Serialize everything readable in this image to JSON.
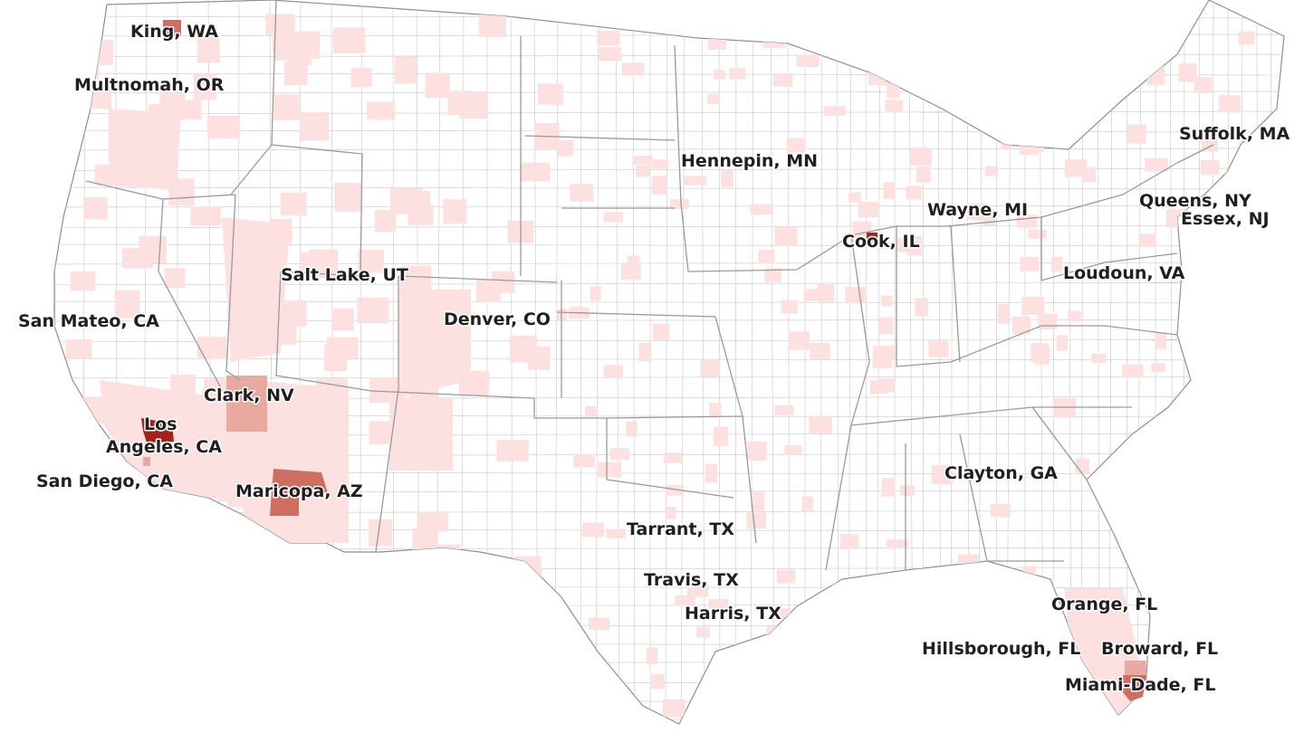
{
  "title": "",
  "colors": {
    "background": "#ffffff",
    "land": "#ffffff",
    "county_border": "#c9c9c9",
    "state_border": "#9a9a9a",
    "level_low": "#fde0e0",
    "level_mid": "#e9a9a0",
    "level_high": "#cd6e60",
    "level_top": "#a5221a"
  },
  "counties": [
    {
      "id": "king-wa",
      "label": "King, WA",
      "level": "high"
    },
    {
      "id": "multnomah-or",
      "label": "Multnomah, OR",
      "level": "low"
    },
    {
      "id": "san-mateo-ca",
      "label": "San Mateo, CA",
      "level": "low"
    },
    {
      "id": "los-angeles-ca",
      "label_line1": "Los",
      "label_line2": "Angeles, CA",
      "level": "top"
    },
    {
      "id": "san-diego-ca",
      "label": "San Diego, CA",
      "level": "mid"
    },
    {
      "id": "clark-nv",
      "label": "Clark, NV",
      "level": "mid"
    },
    {
      "id": "maricopa-az",
      "label": "Maricopa, AZ",
      "level": "high"
    },
    {
      "id": "salt-lake-ut",
      "label": "Salt Lake, UT",
      "level": "low"
    },
    {
      "id": "denver-co",
      "label": "Denver, CO",
      "level": "low"
    },
    {
      "id": "hennepin-mn",
      "label": "Hennepin, MN",
      "level": "low"
    },
    {
      "id": "cook-il",
      "label": "Cook, IL",
      "level": "top"
    },
    {
      "id": "wayne-mi",
      "label": "Wayne, MI",
      "level": "low"
    },
    {
      "id": "suffolk-ma",
      "label": "Suffolk, MA",
      "level": "low"
    },
    {
      "id": "queens-ny",
      "label": "Queens, NY",
      "level": "low"
    },
    {
      "id": "essex-nj",
      "label": "Essex, NJ",
      "level": "low"
    },
    {
      "id": "loudoun-va",
      "label": "Loudoun, VA",
      "level": "low"
    },
    {
      "id": "tarrant-tx",
      "label": "Tarrant, TX",
      "level": "low"
    },
    {
      "id": "travis-tx",
      "label": "Travis, TX",
      "level": "low"
    },
    {
      "id": "harris-tx",
      "label": "Harris, TX",
      "level": "low"
    },
    {
      "id": "clayton-ga",
      "label": "Clayton, GA",
      "level": "low"
    },
    {
      "id": "orange-fl",
      "label": "Orange, FL",
      "level": "low"
    },
    {
      "id": "hillsborough-fl",
      "label": "Hillsborough, FL",
      "level": "low"
    },
    {
      "id": "broward-fl",
      "label": "Broward, FL",
      "level": "mid"
    },
    {
      "id": "miami-dade-fl",
      "label": "Miami-Dade, FL",
      "level": "high"
    }
  ]
}
